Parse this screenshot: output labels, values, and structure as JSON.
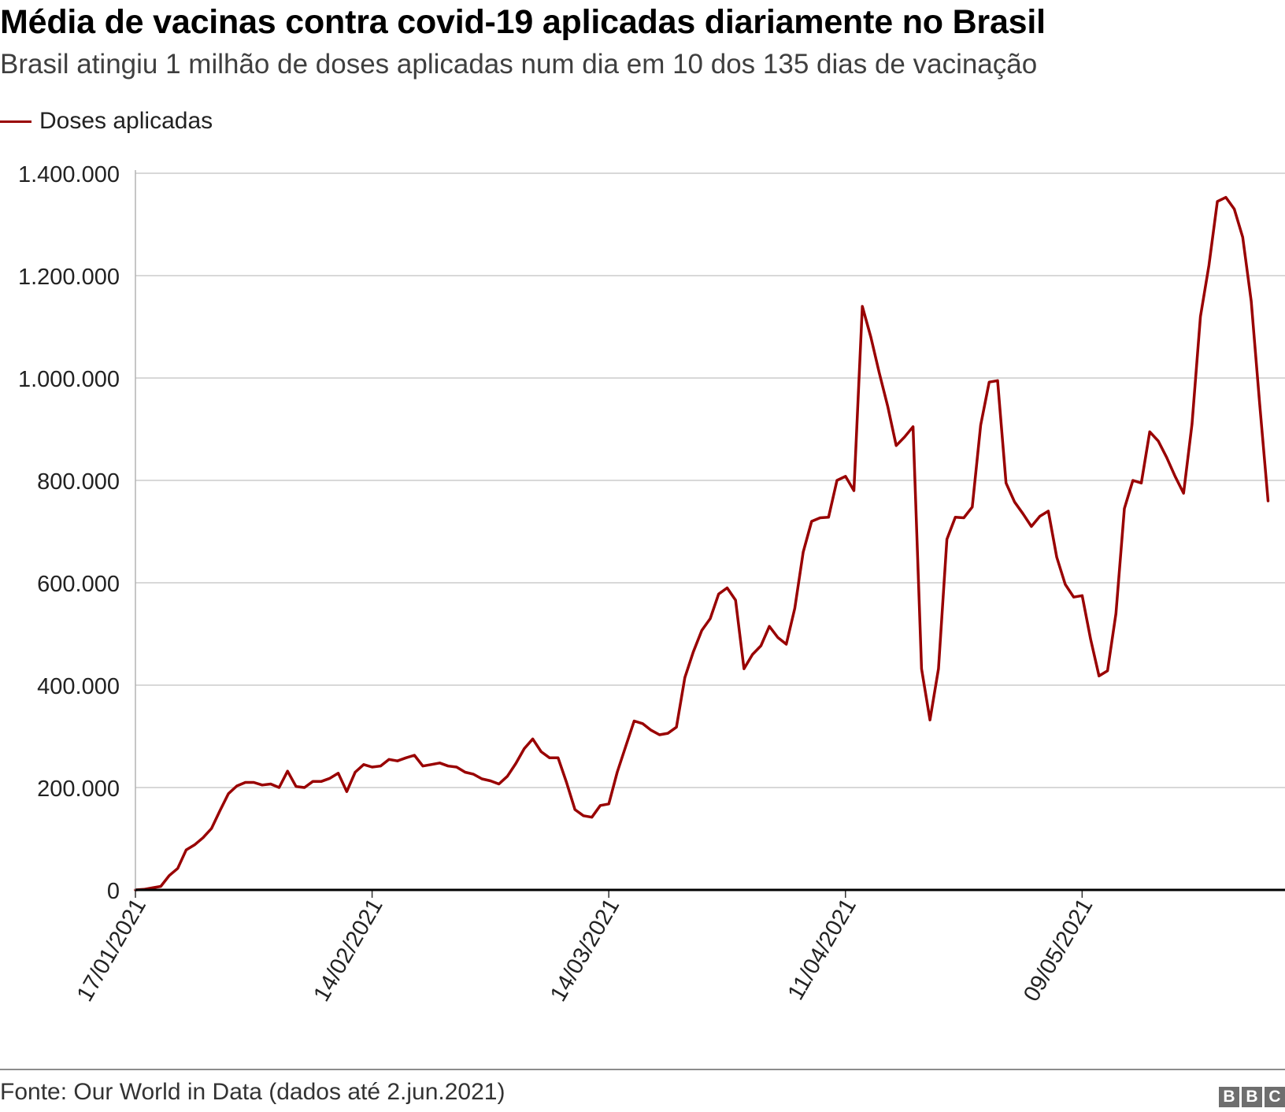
{
  "header": {
    "title": "Média de vacinas contra covid-19 aplicadas diariamente no Brasil",
    "subtitle": "Brasil atingiu 1 milhão de doses aplicadas num dia em 10 dos 135 dias de vacinação"
  },
  "footer": {
    "source": "Fonte: Our World in Data (dados até 2.jun.2021)",
    "logo": [
      "B",
      "B",
      "C"
    ]
  },
  "colors": {
    "line": "#990000",
    "grid": "#cccccc",
    "axis": "#000000"
  },
  "chart_data": {
    "type": "line",
    "title": "Média de vacinas contra covid-19 aplicadas diariamente no Brasil",
    "subtitle": "Brasil atingiu 1 milhão de doses aplicadas num dia em 10 dos 135 dias de vacinação",
    "xlabel": "",
    "ylabel": "",
    "legend_position": "top-left",
    "grid": true,
    "x_start": "17/01/2021",
    "x_end": "02/06/2021",
    "ylim": [
      0,
      1400000
    ],
    "yticks": [
      0,
      200000,
      400000,
      600000,
      800000,
      1000000,
      1200000,
      1400000
    ],
    "ytick_labels": [
      "0",
      "200.000",
      "400.000",
      "600.000",
      "800.000",
      "1.000.000",
      "1.200.000",
      "1.400.000"
    ],
    "xticks": [
      "17/01/2021",
      "14/02/2021",
      "14/03/2021",
      "11/04/2021",
      "09/05/2021"
    ],
    "series": [
      {
        "name": "Doses aplicadas",
        "color": "#990000",
        "points": [
          [
            "17/01/2021",
            0
          ],
          [
            "18/01/2021",
            1000
          ],
          [
            "19/01/2021",
            4000
          ],
          [
            "20/01/2021",
            7000
          ],
          [
            "21/01/2021",
            28000
          ],
          [
            "22/01/2021",
            42000
          ],
          [
            "23/01/2021",
            78000
          ],
          [
            "24/01/2021",
            88000
          ],
          [
            "25/01/2021",
            102000
          ],
          [
            "26/01/2021",
            120000
          ],
          [
            "27/01/2021",
            155000
          ],
          [
            "28/01/2021",
            188000
          ],
          [
            "29/01/2021",
            203000
          ],
          [
            "30/01/2021",
            210000
          ],
          [
            "31/01/2021",
            210000
          ],
          [
            "01/02/2021",
            205000
          ],
          [
            "02/02/2021",
            207000
          ],
          [
            "03/02/2021",
            200000
          ],
          [
            "04/02/2021",
            232000
          ],
          [
            "05/02/2021",
            202000
          ],
          [
            "06/02/2021",
            200000
          ],
          [
            "07/02/2021",
            212000
          ],
          [
            "08/02/2021",
            212000
          ],
          [
            "09/02/2021",
            218000
          ],
          [
            "10/02/2021",
            228000
          ],
          [
            "11/02/2021",
            192000
          ],
          [
            "12/02/2021",
            230000
          ],
          [
            "13/02/2021",
            245000
          ],
          [
            "14/02/2021",
            240000
          ],
          [
            "15/02/2021",
            242000
          ],
          [
            "16/02/2021",
            255000
          ],
          [
            "17/02/2021",
            252000
          ],
          [
            "18/02/2021",
            258000
          ],
          [
            "19/02/2021",
            263000
          ],
          [
            "20/02/2021",
            242000
          ],
          [
            "21/02/2021",
            245000
          ],
          [
            "22/02/2021",
            248000
          ],
          [
            "23/02/2021",
            242000
          ],
          [
            "24/02/2021",
            240000
          ],
          [
            "25/02/2021",
            230000
          ],
          [
            "26/02/2021",
            226000
          ],
          [
            "27/02/2021",
            217000
          ],
          [
            "28/02/2021",
            213000
          ],
          [
            "01/03/2021",
            207000
          ],
          [
            "02/03/2021",
            222000
          ],
          [
            "03/03/2021",
            247000
          ],
          [
            "04/03/2021",
            276000
          ],
          [
            "05/03/2021",
            295000
          ],
          [
            "06/03/2021",
            270000
          ],
          [
            "07/03/2021",
            258000
          ],
          [
            "08/03/2021",
            258000
          ],
          [
            "09/03/2021",
            210000
          ],
          [
            "10/03/2021",
            157000
          ],
          [
            "11/03/2021",
            145000
          ],
          [
            "12/03/2021",
            142000
          ],
          [
            "13/03/2021",
            165000
          ],
          [
            "14/03/2021",
            168000
          ],
          [
            "15/03/2021",
            230000
          ],
          [
            "16/03/2021",
            280000
          ],
          [
            "17/03/2021",
            330000
          ],
          [
            "18/03/2021",
            325000
          ],
          [
            "19/03/2021",
            312000
          ],
          [
            "20/03/2021",
            303000
          ],
          [
            "21/03/2021",
            306000
          ],
          [
            "22/03/2021",
            318000
          ],
          [
            "23/03/2021",
            415000
          ],
          [
            "24/03/2021",
            465000
          ],
          [
            "25/03/2021",
            507000
          ],
          [
            "26/03/2021",
            530000
          ],
          [
            "27/03/2021",
            578000
          ],
          [
            "28/03/2021",
            590000
          ],
          [
            "29/03/2021",
            566000
          ],
          [
            "30/03/2021",
            432000
          ],
          [
            "31/03/2021",
            460000
          ],
          [
            "01/04/2021",
            477000
          ],
          [
            "02/04/2021",
            515000
          ],
          [
            "03/04/2021",
            493000
          ],
          [
            "04/04/2021",
            480000
          ],
          [
            "05/04/2021",
            550000
          ],
          [
            "06/04/2021",
            660000
          ],
          [
            "07/04/2021",
            720000
          ],
          [
            "08/04/2021",
            727000
          ],
          [
            "09/04/2021",
            728000
          ],
          [
            "10/04/2021",
            800000
          ],
          [
            "11/04/2021",
            808000
          ],
          [
            "12/04/2021",
            780000
          ],
          [
            "13/04/2021",
            1140000
          ],
          [
            "14/04/2021",
            1080000
          ],
          [
            "15/04/2021",
            1010000
          ],
          [
            "16/04/2021",
            945000
          ],
          [
            "17/04/2021",
            868000
          ],
          [
            "18/04/2021",
            885000
          ],
          [
            "19/04/2021",
            905000
          ],
          [
            "20/04/2021",
            432000
          ],
          [
            "21/04/2021",
            332000
          ],
          [
            "22/04/2021",
            432000
          ],
          [
            "23/04/2021",
            685000
          ],
          [
            "24/04/2021",
            728000
          ],
          [
            "25/04/2021",
            727000
          ],
          [
            "26/04/2021",
            748000
          ],
          [
            "27/04/2021",
            908000
          ],
          [
            "28/04/2021",
            992000
          ],
          [
            "29/04/2021",
            995000
          ],
          [
            "30/04/2021",
            795000
          ],
          [
            "01/05/2021",
            758000
          ],
          [
            "02/05/2021",
            735000
          ],
          [
            "03/05/2021",
            710000
          ],
          [
            "04/05/2021",
            730000
          ],
          [
            "05/05/2021",
            740000
          ],
          [
            "06/05/2021",
            650000
          ],
          [
            "07/05/2021",
            597000
          ],
          [
            "08/05/2021",
            572000
          ],
          [
            "09/05/2021",
            575000
          ],
          [
            "10/05/2021",
            490000
          ],
          [
            "11/05/2021",
            418000
          ],
          [
            "12/05/2021",
            428000
          ],
          [
            "13/05/2021",
            540000
          ],
          [
            "14/05/2021",
            745000
          ],
          [
            "15/05/2021",
            800000
          ],
          [
            "16/05/2021",
            795000
          ],
          [
            "17/05/2021",
            895000
          ],
          [
            "18/05/2021",
            877000
          ],
          [
            "19/05/2021",
            845000
          ],
          [
            "20/05/2021",
            808000
          ],
          [
            "21/05/2021",
            775000
          ],
          [
            "22/05/2021",
            910000
          ],
          [
            "23/05/2021",
            1120000
          ],
          [
            "24/05/2021",
            1220000
          ],
          [
            "25/05/2021",
            1345000
          ],
          [
            "26/05/2021",
            1353000
          ],
          [
            "27/05/2021",
            1330000
          ],
          [
            "28/05/2021",
            1275000
          ],
          [
            "29/05/2021",
            1150000
          ],
          [
            "30/05/2021",
            950000
          ],
          [
            "31/05/2021",
            760000
          ]
        ]
      }
    ]
  }
}
